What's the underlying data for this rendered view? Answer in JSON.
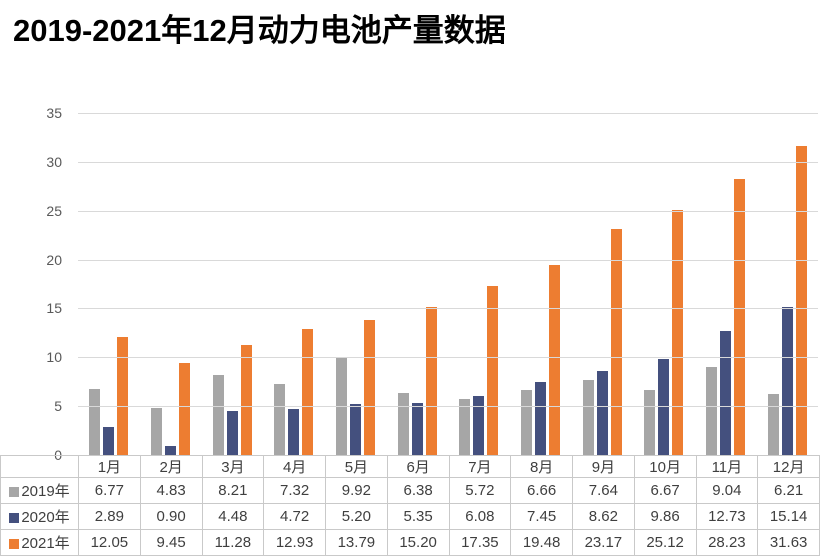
{
  "title": "2019-2021年12月动力电池产量数据",
  "colors": {
    "grid": "#D9D9D9",
    "table_border": "#C9C9C9",
    "axis_text": "#595959",
    "table_text": "#3F3F3F",
    "title_text": "#000000"
  },
  "chart_data": {
    "type": "bar",
    "title": "2019-2021年12月动力电池产量数据",
    "categories": [
      "1月",
      "2月",
      "3月",
      "4月",
      "5月",
      "6月",
      "7月",
      "8月",
      "9月",
      "10月",
      "11月",
      "12月"
    ],
    "series": [
      {
        "name": "2019年",
        "color": "#A6A6A6",
        "values": [
          6.77,
          4.83,
          8.21,
          7.32,
          9.92,
          6.38,
          5.72,
          6.66,
          7.64,
          6.67,
          9.04,
          6.21
        ]
      },
      {
        "name": "2020年",
        "color": "#44507E",
        "values": [
          2.89,
          0.9,
          4.48,
          4.72,
          5.2,
          5.35,
          6.08,
          7.45,
          8.62,
          9.86,
          12.73,
          15.14
        ]
      },
      {
        "name": "2021年",
        "color": "#ED7D31",
        "values": [
          12.05,
          9.45,
          11.28,
          12.93,
          13.79,
          15.2,
          17.35,
          19.48,
          23.17,
          25.12,
          28.23,
          31.63
        ]
      }
    ],
    "xlabel": "",
    "ylabel": "",
    "ylim": [
      0,
      35
    ],
    "yticks": [
      0,
      5,
      10,
      15,
      20,
      25,
      30,
      35
    ],
    "grid": true,
    "legend_position": "table-left",
    "value_decimals": 2
  }
}
